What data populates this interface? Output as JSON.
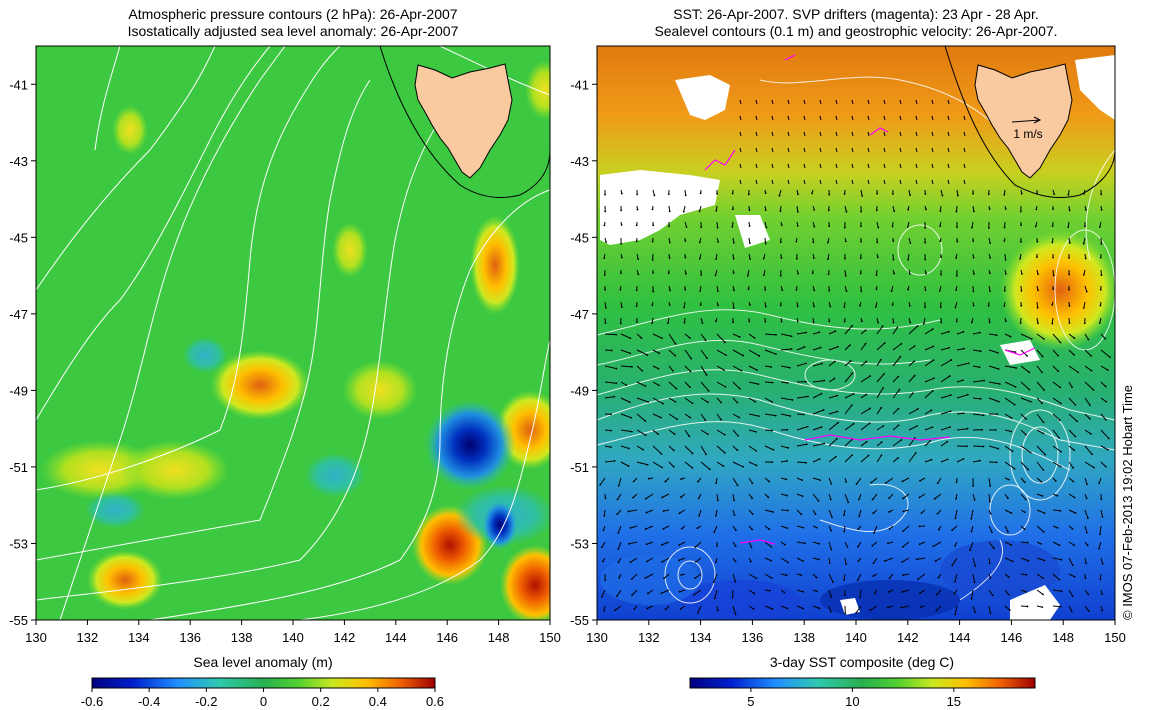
{
  "left_panel": {
    "title_line1": "Atmospheric pressure contours (2 hPa): 26-Apr-2007",
    "title_line2": "Isostatically adjusted sea level anomaly: 26-Apr-2007",
    "colorbar": {
      "label": "Sea level anomaly (m)",
      "ticks": [
        "-0.6",
        "-0.4",
        "-0.2",
        "0",
        "0.2",
        "0.4",
        "0.6"
      ],
      "range": [
        -0.6,
        0.6
      ]
    }
  },
  "right_panel": {
    "title_line1": "SST: 26-Apr-2007. SVP drifters (magenta): 23 Apr - 28 Apr.",
    "title_line2": "Sealevel contours (0.1 m) and geostrophic velocity: 26-Apr-2007.",
    "velocity_scale_label": "1 m/s",
    "colorbar": {
      "label": "3-day SST composite (deg C)",
      "ticks": [
        "5",
        "10",
        "15"
      ],
      "range": [
        2,
        19
      ]
    }
  },
  "axes": {
    "lon_ticks": [
      "130",
      "132",
      "134",
      "136",
      "138",
      "140",
      "142",
      "144",
      "146",
      "148",
      "150"
    ],
    "lat_ticks": [
      "-41",
      "-43",
      "-45",
      "-47",
      "-49",
      "-51",
      "-53",
      "-55"
    ]
  },
  "credit": "© IMOS 07-Feb-2013 19:02 Hobart Time",
  "colors": {
    "land": "#f9c9a0",
    "contour": "#ffffff",
    "drifter": "#ff00ff",
    "velocity_arrow": "#000000"
  }
}
